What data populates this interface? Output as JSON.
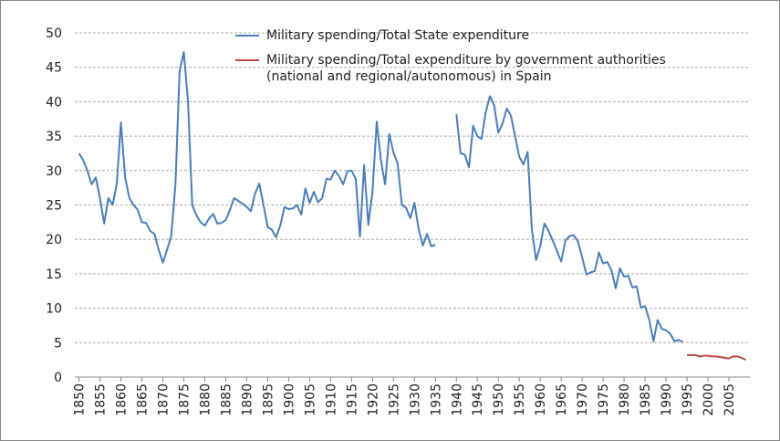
{
  "chart_data": {
    "type": "line",
    "series": [
      {
        "name": "Military spending/Total State expenditure",
        "color": "#4a7ebb",
        "x": [
          1850,
          1851,
          1852,
          1853,
          1854,
          1855,
          1856,
          1857,
          1858,
          1859,
          1860,
          1861,
          1862,
          1863,
          1864,
          1865,
          1866,
          1867,
          1868,
          1869,
          1870,
          1871,
          1872,
          1873,
          1874,
          1875,
          1876,
          1877,
          1878,
          1879,
          1880,
          1881,
          1882,
          1883,
          1884,
          1885,
          1886,
          1887,
          1888,
          1889,
          1890,
          1891,
          1892,
          1893,
          1894,
          1895,
          1896,
          1897,
          1898,
          1899,
          1900,
          1901,
          1902,
          1903,
          1904,
          1905,
          1906,
          1907,
          1908,
          1909,
          1910,
          1911,
          1912,
          1913,
          1914,
          1915,
          1916,
          1917,
          1918,
          1919,
          1920,
          1921,
          1922,
          1923,
          1924,
          1925,
          1926,
          1927,
          1928,
          1929,
          1930,
          1931,
          1932,
          1933,
          1934,
          1935,
          1936,
          1937,
          1938,
          1939,
          1940,
          1941,
          1942,
          1943,
          1944,
          1945,
          1946,
          1947,
          1948,
          1949,
          1950,
          1951,
          1952,
          1953,
          1954,
          1955,
          1956,
          1957,
          1958,
          1959,
          1960,
          1961,
          1962,
          1963,
          1964,
          1965,
          1966,
          1967,
          1968,
          1969,
          1970,
          1971,
          1972,
          1973,
          1974,
          1975,
          1976,
          1977,
          1978,
          1979,
          1980,
          1981,
          1982,
          1983,
          1984,
          1985,
          1986,
          1987,
          1988,
          1989,
          1990,
          1991,
          1992,
          1993,
          1994
        ],
        "values": [
          32.5,
          31.5,
          30,
          28,
          29,
          26,
          22.3,
          26,
          25,
          28,
          37,
          29,
          26,
          25,
          24.3,
          22.5,
          22.4,
          21.2,
          20.8,
          18.5,
          16.6,
          18.5,
          20.5,
          28,
          44.5,
          47.2,
          40,
          25,
          23.5,
          22.5,
          22,
          23,
          23.7,
          22.3,
          22.4,
          22.8,
          24.3,
          26,
          25.6,
          25.2,
          24.7,
          24.1,
          26.7,
          28.1,
          25,
          21.8,
          21.4,
          20.3,
          22,
          24.7,
          24.4,
          24.5,
          25,
          23.6,
          27.4,
          25.3,
          26.9,
          25.4,
          26,
          28.8,
          28.7,
          30,
          29.2,
          28,
          29.9,
          30,
          28.8,
          20.4,
          30.8,
          22.1,
          27,
          37.1,
          31.5,
          28,
          35.3,
          32.6,
          31,
          25,
          24.6,
          23.1,
          25.3,
          21.5,
          19.1,
          20.8,
          19,
          19.2,
          null,
          null,
          null,
          null,
          38.2,
          32.5,
          32.3,
          30.5,
          36.5,
          35,
          34.6,
          38.5,
          40.8,
          39.5,
          35.5,
          36.8,
          39,
          38,
          35,
          32,
          30.9,
          32.7,
          21.5,
          17,
          19,
          22.3,
          21.2,
          19.8,
          18.3,
          16.8,
          19.8,
          20.5,
          20.6,
          19.7,
          17.4,
          14.9,
          15.2,
          15.4,
          18.1,
          16.5,
          16.7,
          15.5,
          12.9,
          15.8,
          14.6,
          14.7,
          13,
          13.2,
          10.1,
          10.3,
          8.3,
          5.2,
          8.3,
          7,
          6.8,
          6.3,
          5.2,
          5.4,
          5.1
        ]
      },
      {
        "name": "Military spending/Total expenditure by government authorities (national and regional/autonomous) in Spain",
        "color": "#be4b48",
        "x": [
          1995,
          1996,
          1997,
          1998,
          1999,
          2000,
          2001,
          2002,
          2003,
          2004,
          2005,
          2006,
          2007,
          2008,
          2009
        ],
        "values": [
          3.2,
          3.2,
          3.2,
          3.0,
          3.1,
          3.1,
          3.0,
          3.0,
          2.9,
          2.8,
          2.7,
          3.0,
          3.0,
          2.8,
          2.5
        ]
      }
    ],
    "xlim": [
      1849,
      2010
    ],
    "xticks": [
      1850,
      1855,
      1860,
      1865,
      1870,
      1875,
      1880,
      1885,
      1890,
      1895,
      1900,
      1905,
      1910,
      1915,
      1920,
      1925,
      1930,
      1935,
      1940,
      1945,
      1950,
      1955,
      1960,
      1965,
      1970,
      1975,
      1980,
      1985,
      1990,
      1995,
      2000,
      2005
    ],
    "ylim": [
      0,
      50
    ],
    "yticks": [
      0,
      5,
      10,
      15,
      20,
      25,
      30,
      35,
      40,
      45,
      50
    ],
    "grid": true
  }
}
